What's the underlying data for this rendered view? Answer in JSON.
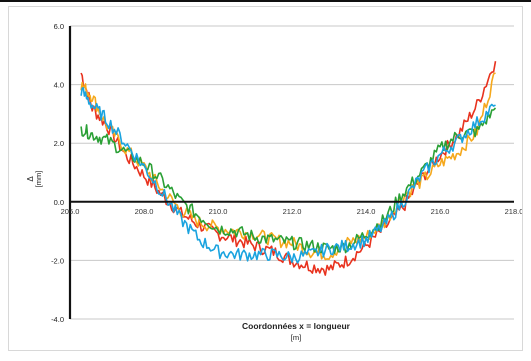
{
  "chart_data": {
    "type": "line",
    "xlabel": "Coordonnées x = longueur",
    "xunit": "[m]",
    "ylabel": "Δ",
    "yunit": "[mm]",
    "xlim": [
      206.0,
      218.0
    ],
    "ylim": [
      -4.0,
      6.0
    ],
    "xticks": [
      "206.0",
      "208.0",
      "210.0",
      "212.0",
      "214.0",
      "216.0",
      "218.0"
    ],
    "yticks": [
      "-4.0",
      "-2.0",
      "0.0",
      "2.0",
      "4.0",
      "6.0"
    ],
    "grid": "horizontal",
    "legend": "none",
    "series": [
      {
        "color": "#e8321e",
        "x": [
          206.3,
          206.6,
          207.0,
          207.5,
          208.0,
          208.5,
          209.0,
          209.5,
          210.0,
          210.5,
          211.0,
          211.5,
          212.0,
          212.5,
          213.0,
          213.5,
          214.0,
          214.5,
          215.0,
          215.5,
          216.0,
          216.5,
          217.0,
          217.5
        ],
        "y": [
          4.4,
          3.2,
          2.6,
          1.6,
          0.9,
          0.2,
          -0.4,
          -0.8,
          -1.1,
          -1.3,
          -1.5,
          -1.7,
          -2.0,
          -2.2,
          -2.3,
          -2.0,
          -1.5,
          -0.9,
          -0.2,
          0.8,
          1.6,
          2.3,
          3.3,
          4.8
        ]
      },
      {
        "color": "#f5a81c",
        "x": [
          206.3,
          206.6,
          207.0,
          207.5,
          208.0,
          208.5,
          209.0,
          209.5,
          210.0,
          210.5,
          211.0,
          211.5,
          212.0,
          212.5,
          213.0,
          213.5,
          214.0,
          214.5,
          215.0,
          215.5,
          216.0,
          216.5,
          217.0,
          217.5
        ],
        "y": [
          4.0,
          3.6,
          2.6,
          1.8,
          1.2,
          0.4,
          -0.3,
          -0.7,
          -0.9,
          -1.0,
          -1.1,
          -1.3,
          -1.4,
          -1.7,
          -1.8,
          -1.4,
          -1.2,
          -0.7,
          0.2,
          0.7,
          1.3,
          1.7,
          2.4,
          4.4
        ]
      },
      {
        "color": "#2aa035",
        "x": [
          206.3,
          206.6,
          207.0,
          207.5,
          208.0,
          208.5,
          209.0,
          209.5,
          210.0,
          210.5,
          211.0,
          211.5,
          212.0,
          212.5,
          213.0,
          213.5,
          214.0,
          214.5,
          215.0,
          215.5,
          216.0,
          216.5,
          217.0,
          217.5
        ],
        "y": [
          2.5,
          2.3,
          2.1,
          1.7,
          1.3,
          0.7,
          0.0,
          -0.5,
          -0.9,
          -1.0,
          -1.2,
          -1.3,
          -1.4,
          -1.5,
          -1.6,
          -1.5,
          -1.1,
          -0.6,
          0.3,
          1.0,
          1.8,
          2.3,
          2.4,
          3.2
        ]
      },
      {
        "color": "#1aa3df",
        "x": [
          206.3,
          206.6,
          207.0,
          207.5,
          208.0,
          208.5,
          209.0,
          209.5,
          210.0,
          210.5,
          211.0,
          211.5,
          212.0,
          212.5,
          213.0,
          213.5,
          214.0,
          214.5,
          215.0,
          215.5,
          216.0,
          216.5,
          217.0,
          217.5
        ],
        "y": [
          3.8,
          3.3,
          2.8,
          2.0,
          1.2,
          0.3,
          -0.6,
          -1.3,
          -1.7,
          -1.8,
          -1.8,
          -1.8,
          -1.9,
          -1.8,
          -1.6,
          -1.5,
          -1.3,
          -0.8,
          0.0,
          0.9,
          1.6,
          2.1,
          2.7,
          3.3
        ]
      }
    ]
  }
}
